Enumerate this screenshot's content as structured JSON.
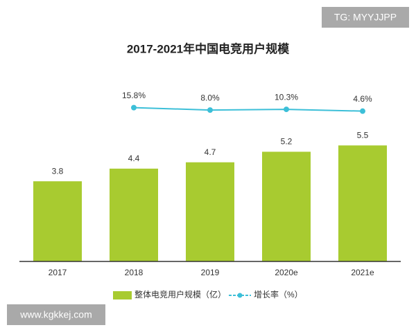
{
  "chart_data": {
    "type": "bar-line",
    "title": "2017-2021年中国电竞用户规模",
    "categories": [
      "2017",
      "2018",
      "2019",
      "2020e",
      "2021e"
    ],
    "series": [
      {
        "name": "整体电竞用户规模（亿）",
        "color": "#a8cb30",
        "values": [
          3.8,
          4.4,
          4.7,
          5.2,
          5.5
        ]
      },
      {
        "name": "增长率（%）",
        "color": "#3cbfd8",
        "axis": "y2",
        "values": [
          null,
          15.8,
          8.0,
          10.3,
          4.6
        ],
        "value_labels": [
          null,
          "15.8%",
          "8.0%",
          "10.3%",
          "4.6%"
        ]
      }
    ],
    "ylim": [
      0,
      10
    ],
    "y2lim": [
      -480,
      200
    ],
    "watermarks": [
      "TG: MYYJJPP",
      "www.kgkkej.com"
    ]
  }
}
